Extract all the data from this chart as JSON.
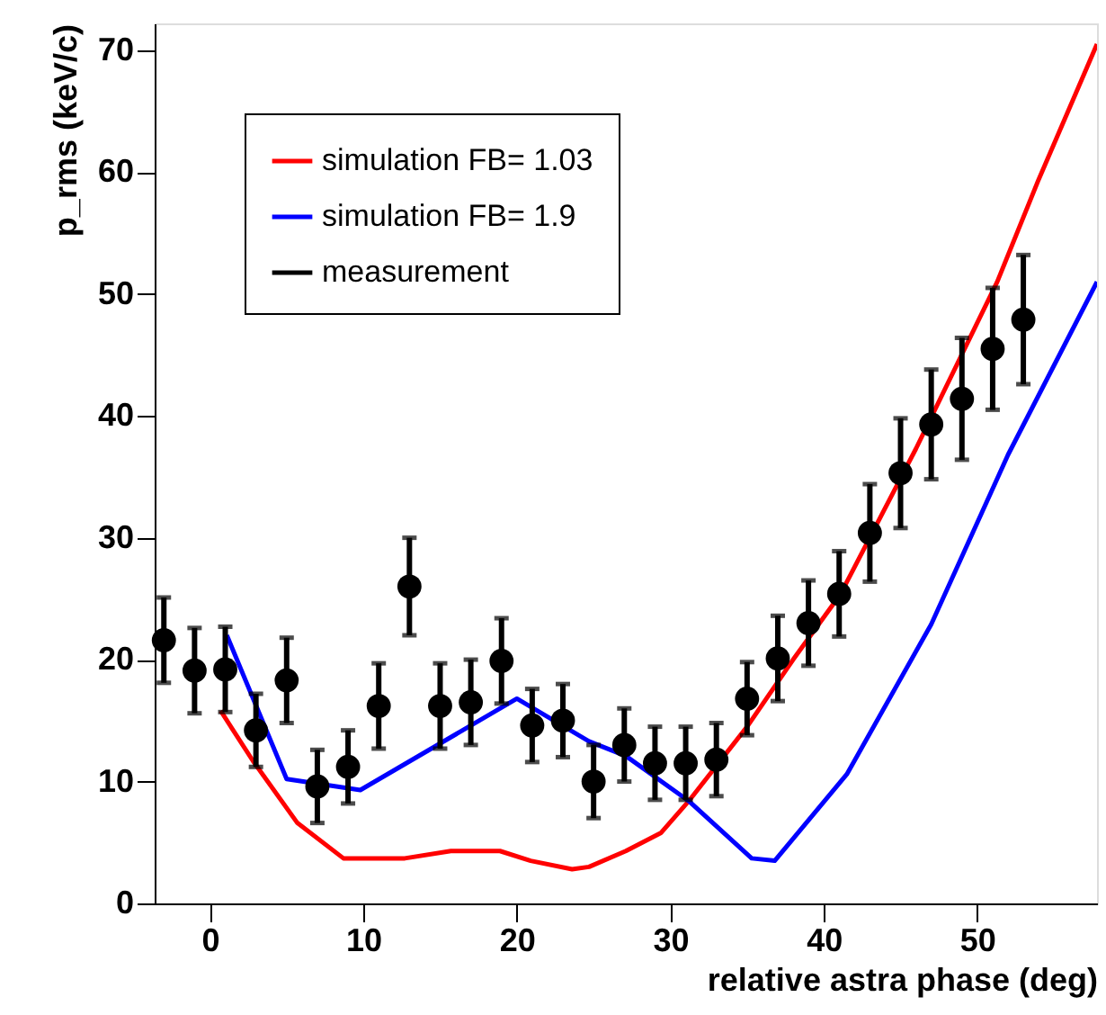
{
  "chart_data": {
    "type": "line",
    "xlabel": "relative astra phase (deg)",
    "ylabel": "p_rms (keV/c)",
    "xlim": [
      -3.6,
      57.8
    ],
    "ylim": [
      0,
      72.2
    ],
    "xticks": [
      0,
      10,
      20,
      30,
      40,
      50
    ],
    "yticks": [
      0,
      10,
      20,
      30,
      40,
      50,
      60,
      70
    ],
    "grid": false,
    "legend": "top left",
    "series": [
      {
        "name": "simulation FB= 1.03",
        "color": "#ff0000",
        "type": "line",
        "x": [
          0.7,
          2.8,
          5.7,
          8.7,
          12.7,
          15.7,
          18.9,
          20.9,
          23.6,
          24.7,
          27.1,
          29.4,
          31.2,
          35,
          38,
          41.1,
          46,
          51.3,
          54,
          57.8
        ],
        "values": [
          15.8,
          11.7,
          6.6,
          3.7,
          3.7,
          4.3,
          4.3,
          3.5,
          2.8,
          3,
          4.3,
          5.8,
          8.4,
          14.5,
          20,
          25.4,
          37.3,
          51,
          59.4,
          70.5
        ]
      },
      {
        "name": "simulation FB= 1.9",
        "color": "#0000ff",
        "type": "line",
        "x": [
          1.1,
          5,
          9.8,
          20,
          24.7,
          27.1,
          31.2,
          35.3,
          36.8,
          41.5,
          47,
          52,
          57.8
        ],
        "values": [
          22,
          10.2,
          9.3,
          16.8,
          13.3,
          12.1,
          8.4,
          3.7,
          3.5,
          10.6,
          22.9,
          36.8,
          51
        ]
      },
      {
        "name": "measurement",
        "color": "#000000",
        "type": "scatter",
        "marker": "circle",
        "x": [
          -3,
          -1,
          1,
          3,
          5,
          7,
          9,
          11,
          13,
          15,
          17,
          19,
          21,
          23,
          25,
          27,
          29,
          31,
          33,
          35,
          37,
          39,
          41,
          43,
          45,
          47,
          49,
          51,
          53
        ],
        "values": [
          21.6,
          19.1,
          19.2,
          14.2,
          18.3,
          9.6,
          11.2,
          16.2,
          26,
          16.2,
          16.5,
          19.9,
          14.6,
          15.0,
          10.0,
          13.0,
          11.5,
          11.5,
          11.8,
          16.8,
          20.1,
          23.0,
          25.4,
          30.4,
          35.3,
          39.3,
          41.4,
          45.5,
          47.9
        ],
        "errors": [
          3.5,
          3.5,
          3.5,
          3.0,
          3.5,
          3.0,
          3.0,
          3.5,
          4.0,
          3.5,
          3.5,
          3.5,
          3.0,
          3.0,
          3.0,
          3.0,
          3.0,
          3.0,
          3.0,
          3.0,
          3.5,
          3.5,
          3.5,
          4.0,
          4.5,
          4.5,
          5.0,
          5.0,
          5.3
        ]
      }
    ]
  }
}
